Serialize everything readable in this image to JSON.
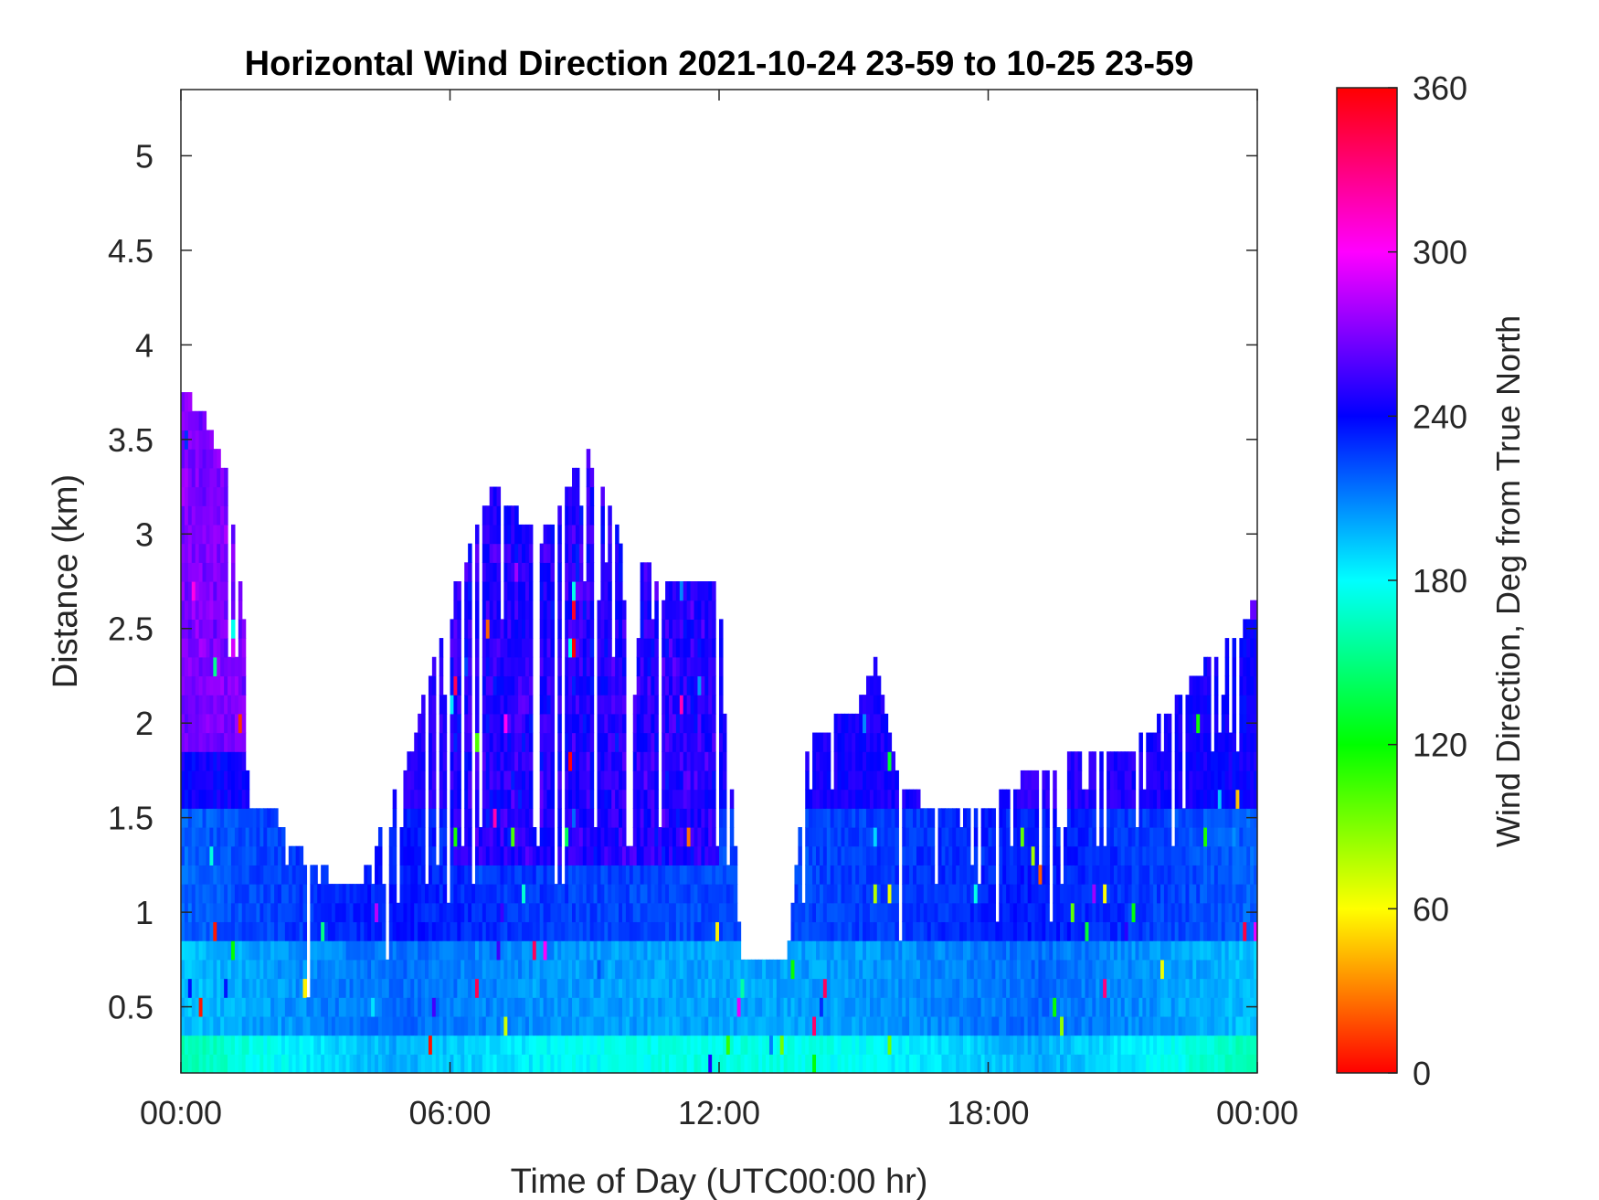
{
  "chart_data": {
    "type": "heatmap",
    "title": "Horizontal Wind Direction 2021-10-24 23-59 to 10-25 23-59",
    "xlabel": "Time of Day (UTC00:00 hr)",
    "ylabel": "Distance (km)",
    "x_ticks": [
      "00:00",
      "06:00",
      "12:00",
      "18:00",
      "00:00"
    ],
    "x_range_hours": [
      0,
      24
    ],
    "y_ticks": [
      "0.5",
      "1",
      "1.5",
      "2",
      "2.5",
      "3",
      "3.5",
      "4",
      "4.5",
      "5"
    ],
    "y_tick_values": [
      0.5,
      1,
      1.5,
      2,
      2.5,
      3,
      3.5,
      4,
      4.5,
      5
    ],
    "ylim": [
      0.15,
      5.35
    ],
    "colorbar": {
      "label": "Wind Direction, Deg from True North",
      "ticks": [
        "0",
        "60",
        "120",
        "180",
        "240",
        "300",
        "360"
      ],
      "range": [
        0,
        360
      ],
      "colormap": [
        "#ff0000",
        "#ffff00",
        "#00ff00",
        "#00ffff",
        "#0000ff",
        "#ff00ff",
        "#ff0000"
      ]
    },
    "grid": false,
    "data_top_profile_km": [
      {
        "hour": 0.0,
        "top": 3.7
      },
      {
        "hour": 0.5,
        "top": 3.6
      },
      {
        "hour": 1.0,
        "top": 3.3
      },
      {
        "hour": 1.4,
        "top": 2.5
      },
      {
        "hour": 1.5,
        "top": 1.5
      },
      {
        "hour": 2.0,
        "top": 1.5
      },
      {
        "hour": 2.5,
        "top": 1.3
      },
      {
        "hour": 3.0,
        "top": 1.2
      },
      {
        "hour": 3.5,
        "top": 1.1
      },
      {
        "hour": 4.0,
        "top": 1.1
      },
      {
        "hour": 5.0,
        "top": 1.7
      },
      {
        "hour": 6.0,
        "top": 2.6
      },
      {
        "hour": 7.0,
        "top": 3.2
      },
      {
        "hour": 8.0,
        "top": 2.9
      },
      {
        "hour": 9.0,
        "top": 3.4
      },
      {
        "hour": 10.0,
        "top": 2.8
      },
      {
        "hour": 11.0,
        "top": 2.7
      },
      {
        "hour": 12.0,
        "top": 2.7
      },
      {
        "hour": 12.5,
        "top": 0.7
      },
      {
        "hour": 13.5,
        "top": 0.7
      },
      {
        "hour": 14.0,
        "top": 1.9
      },
      {
        "hour": 15.0,
        "top": 2.0
      },
      {
        "hour": 15.5,
        "top": 2.3
      },
      {
        "hour": 16.0,
        "top": 1.6
      },
      {
        "hour": 17.0,
        "top": 1.5
      },
      {
        "hour": 18.0,
        "top": 1.5
      },
      {
        "hour": 19.0,
        "top": 1.7
      },
      {
        "hour": 20.0,
        "top": 1.8
      },
      {
        "hour": 21.0,
        "top": 1.8
      },
      {
        "hour": 22.0,
        "top": 2.0
      },
      {
        "hour": 23.0,
        "top": 2.3
      },
      {
        "hour": 24.0,
        "top": 2.6
      }
    ],
    "direction_layers_deg": [
      {
        "from_km": 0.15,
        "to_km": 0.3,
        "deg_low_hours": 135,
        "deg_high_hours": 200
      },
      {
        "from_km": 0.3,
        "to_km": 0.8,
        "deg_low_hours": 180,
        "deg_high_hours": 215
      },
      {
        "from_km": 0.8,
        "to_km": 1.5,
        "deg_low_hours": 205,
        "deg_high_hours": 235
      },
      {
        "from_km": 1.5,
        "to_km": 2.5,
        "deg_low_hours": 235,
        "deg_high_hours": 250
      },
      {
        "from_km": 2.5,
        "to_km": 4.5,
        "deg_low_hours": 245,
        "deg_high_hours": 275
      }
    ]
  }
}
